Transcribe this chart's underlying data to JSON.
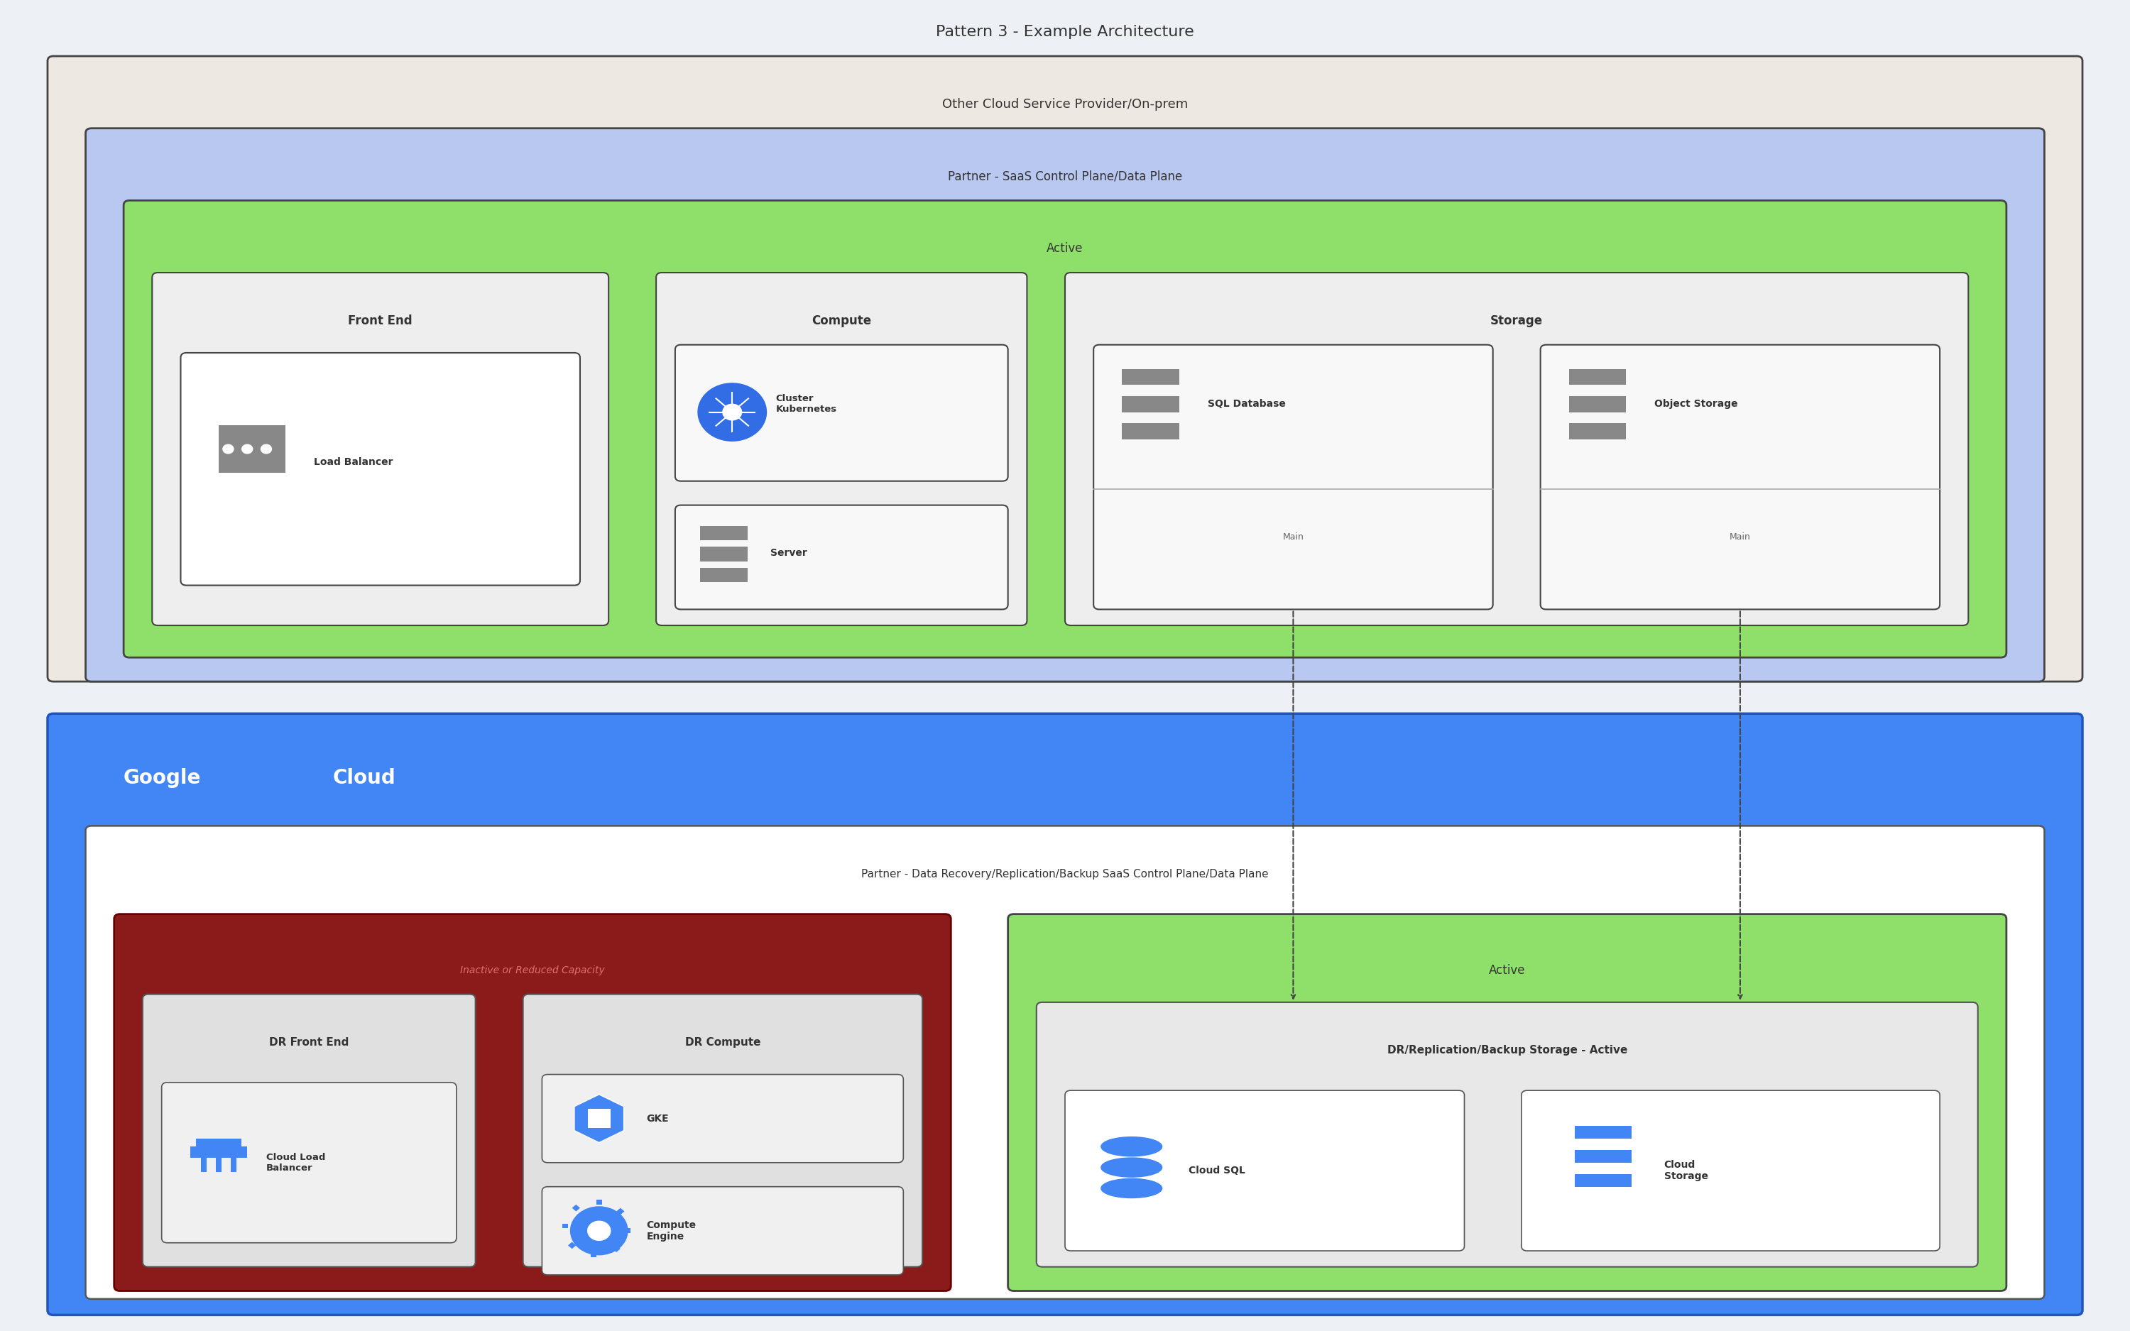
{
  "title": "Pattern 3 - Example Architecture",
  "bg_color": "#edf1f5",
  "colors": {
    "beige_box": "#ede8e2",
    "blue_box": "#b8c8f0",
    "green_box": "#8ee06a",
    "white_inner": "#f2f2f2",
    "lb_inner": "#ffffff",
    "google_cloud_bg": "#4285f4",
    "dark_red_box": "#8b2020",
    "active_green": "#8ee06a",
    "inner_gray": "#e8e8e8",
    "white_box": "#ffffff"
  },
  "top_section_label": "Other Cloud Service Provider/On-prem",
  "partner_control_label": "Partner - SaaS Control Plane/Data Plane",
  "active_label": "Active",
  "front_end_label": "Front End",
  "load_balancer_label": "Load Balancer",
  "compute_label": "Compute",
  "kubernetes_label": "Cluster\nKubernetes",
  "server_label": "Server",
  "storage_label": "Storage",
  "sql_db_label": "SQL Database",
  "sql_sub": "Main",
  "object_storage_label": "Object Storage",
  "object_sub": "Main",
  "partner_dr_label": "Partner - Data Recovery/Replication/Backup SaaS Control Plane/Data Plane",
  "inactive_label": "Inactive or Reduced Capacity",
  "dr_front_end_label": "DR Front End",
  "cloud_lb_label": "Cloud Load\nBalancer",
  "dr_compute_label": "DR Compute",
  "gke_label": "GKE",
  "compute_engine_label": "Compute\nEngine",
  "dr_active_label": "Active",
  "dr_storage_label": "DR/Replication/Backup Storage - Active",
  "cloud_sql_label": "Cloud SQL",
  "cloud_storage_label": "Cloud\nStorage",
  "google_text": "Google",
  "cloud_text": "Cloud"
}
